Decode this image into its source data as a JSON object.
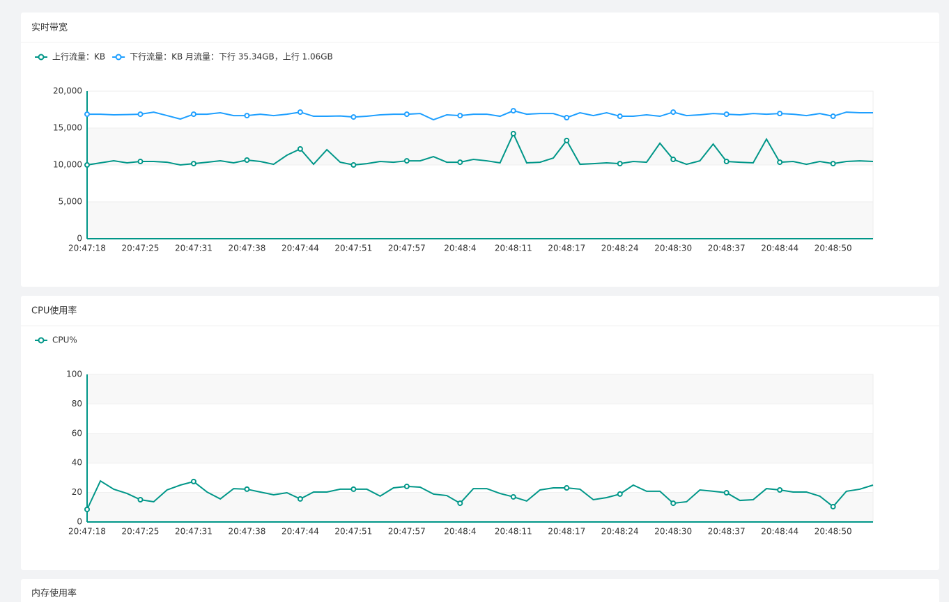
{
  "chart_data": [
    {
      "type": "line",
      "title": "实时带宽",
      "categories": [
        "20:47:18",
        null,
        null,
        null,
        "20:47:25",
        null,
        null,
        null,
        "20:47:31",
        null,
        null,
        null,
        "20:47:38",
        null,
        null,
        null,
        "20:47:44",
        null,
        null,
        null,
        "20:47:51",
        null,
        null,
        null,
        "20:47:57",
        null,
        null,
        null,
        "20:48:4",
        null,
        null,
        null,
        "20:48:11",
        null,
        null,
        null,
        "20:48:17",
        null,
        null,
        null,
        "20:48:24",
        null,
        null,
        null,
        "20:48:30",
        null,
        null,
        null,
        "20:48:37",
        null,
        null,
        null,
        "20:48:44",
        null,
        null,
        null,
        "20:48:50",
        null,
        null,
        null
      ],
      "series": [
        {
          "name": "上行流量：KB",
          "color": "#009688",
          "values": [
            10000,
            10280,
            10560,
            10280,
            10470,
            10470,
            10370,
            10000,
            10180,
            10370,
            10560,
            10280,
            10660,
            10470,
            10090,
            11320,
            12170,
            10090,
            12070,
            10370,
            10000,
            10180,
            10470,
            10370,
            10560,
            10560,
            11130,
            10370,
            10370,
            10750,
            10560,
            10280,
            14240,
            10280,
            10370,
            10940,
            13310,
            10090,
            10180,
            10280,
            10180,
            10470,
            10370,
            12940,
            10750,
            10090,
            10560,
            12830,
            10470,
            10370,
            10280,
            13500,
            10370,
            10470,
            10090,
            10470,
            10180,
            10470,
            10560,
            10470
          ]
        },
        {
          "name": "下行流量：KB 月流量：下行 35.34GB，上行 1.06GB",
          "color": "#1E9FFF",
          "values": [
            16880,
            16880,
            16790,
            16830,
            16880,
            17160,
            16690,
            16220,
            16880,
            16880,
            17070,
            16690,
            16690,
            16880,
            16690,
            16880,
            17160,
            16600,
            16600,
            16640,
            16500,
            16600,
            16790,
            16880,
            16880,
            16970,
            16130,
            16790,
            16690,
            16880,
            16880,
            16600,
            17350,
            16880,
            16970,
            16970,
            16410,
            17070,
            16690,
            17070,
            16600,
            16600,
            16790,
            16600,
            17160,
            16690,
            16790,
            16970,
            16880,
            16790,
            16970,
            16880,
            16970,
            16880,
            16690,
            16970,
            16600,
            17160,
            17070,
            17070
          ]
        }
      ],
      "ylim": [
        0,
        20000
      ],
      "yticks": [
        0,
        {
          "value": 5000,
          "label": "5,000"
        },
        {
          "value": 10000,
          "label": "10,000"
        },
        {
          "value": 15000,
          "label": "15,000"
        },
        {
          "value": 20000,
          "label": "20,000"
        }
      ]
    },
    {
      "type": "line",
      "title": "CPU使用率",
      "categories": [
        "20:47:18",
        null,
        null,
        null,
        "20:47:25",
        null,
        null,
        null,
        "20:47:31",
        null,
        null,
        null,
        "20:47:38",
        null,
        null,
        null,
        "20:47:44",
        null,
        null,
        null,
        "20:47:51",
        null,
        null,
        null,
        "20:47:57",
        null,
        null,
        null,
        "20:48:4",
        null,
        null,
        null,
        "20:48:11",
        null,
        null,
        null,
        "20:48:17",
        null,
        null,
        null,
        "20:48:24",
        null,
        null,
        null,
        "20:48:30",
        null,
        null,
        null,
        "20:48:37",
        null,
        null,
        null,
        "20:48:44",
        null,
        null,
        null,
        "20:48:50",
        null,
        null,
        null
      ],
      "series": [
        {
          "name": "CPU%",
          "color": "#009688",
          "values": [
            8.5,
            27.8,
            22.2,
            19.3,
            15.1,
            13.7,
            21.7,
            25,
            27.4,
            20.3,
            15.6,
            22.6,
            22.2,
            20.3,
            18.4,
            19.8,
            15.6,
            20.3,
            20.3,
            22.2,
            22.2,
            22.2,
            17.5,
            23.1,
            24.1,
            23.6,
            18.9,
            17.9,
            12.7,
            22.6,
            22.6,
            19.3,
            17,
            14.2,
            21.7,
            23.1,
            23.1,
            22.2,
            15.1,
            16.5,
            18.9,
            25,
            20.8,
            20.8,
            12.7,
            13.7,
            21.7,
            20.8,
            19.8,
            14.6,
            15.1,
            22.6,
            21.7,
            20.3,
            20.3,
            17.5,
            10.4,
            20.8,
            22.2,
            25
          ]
        }
      ],
      "ylim": [
        0,
        100
      ],
      "yticks": [
        0,
        20,
        40,
        60,
        80,
        100
      ]
    }
  ],
  "last_panel": {
    "title": "内存使用率"
  }
}
